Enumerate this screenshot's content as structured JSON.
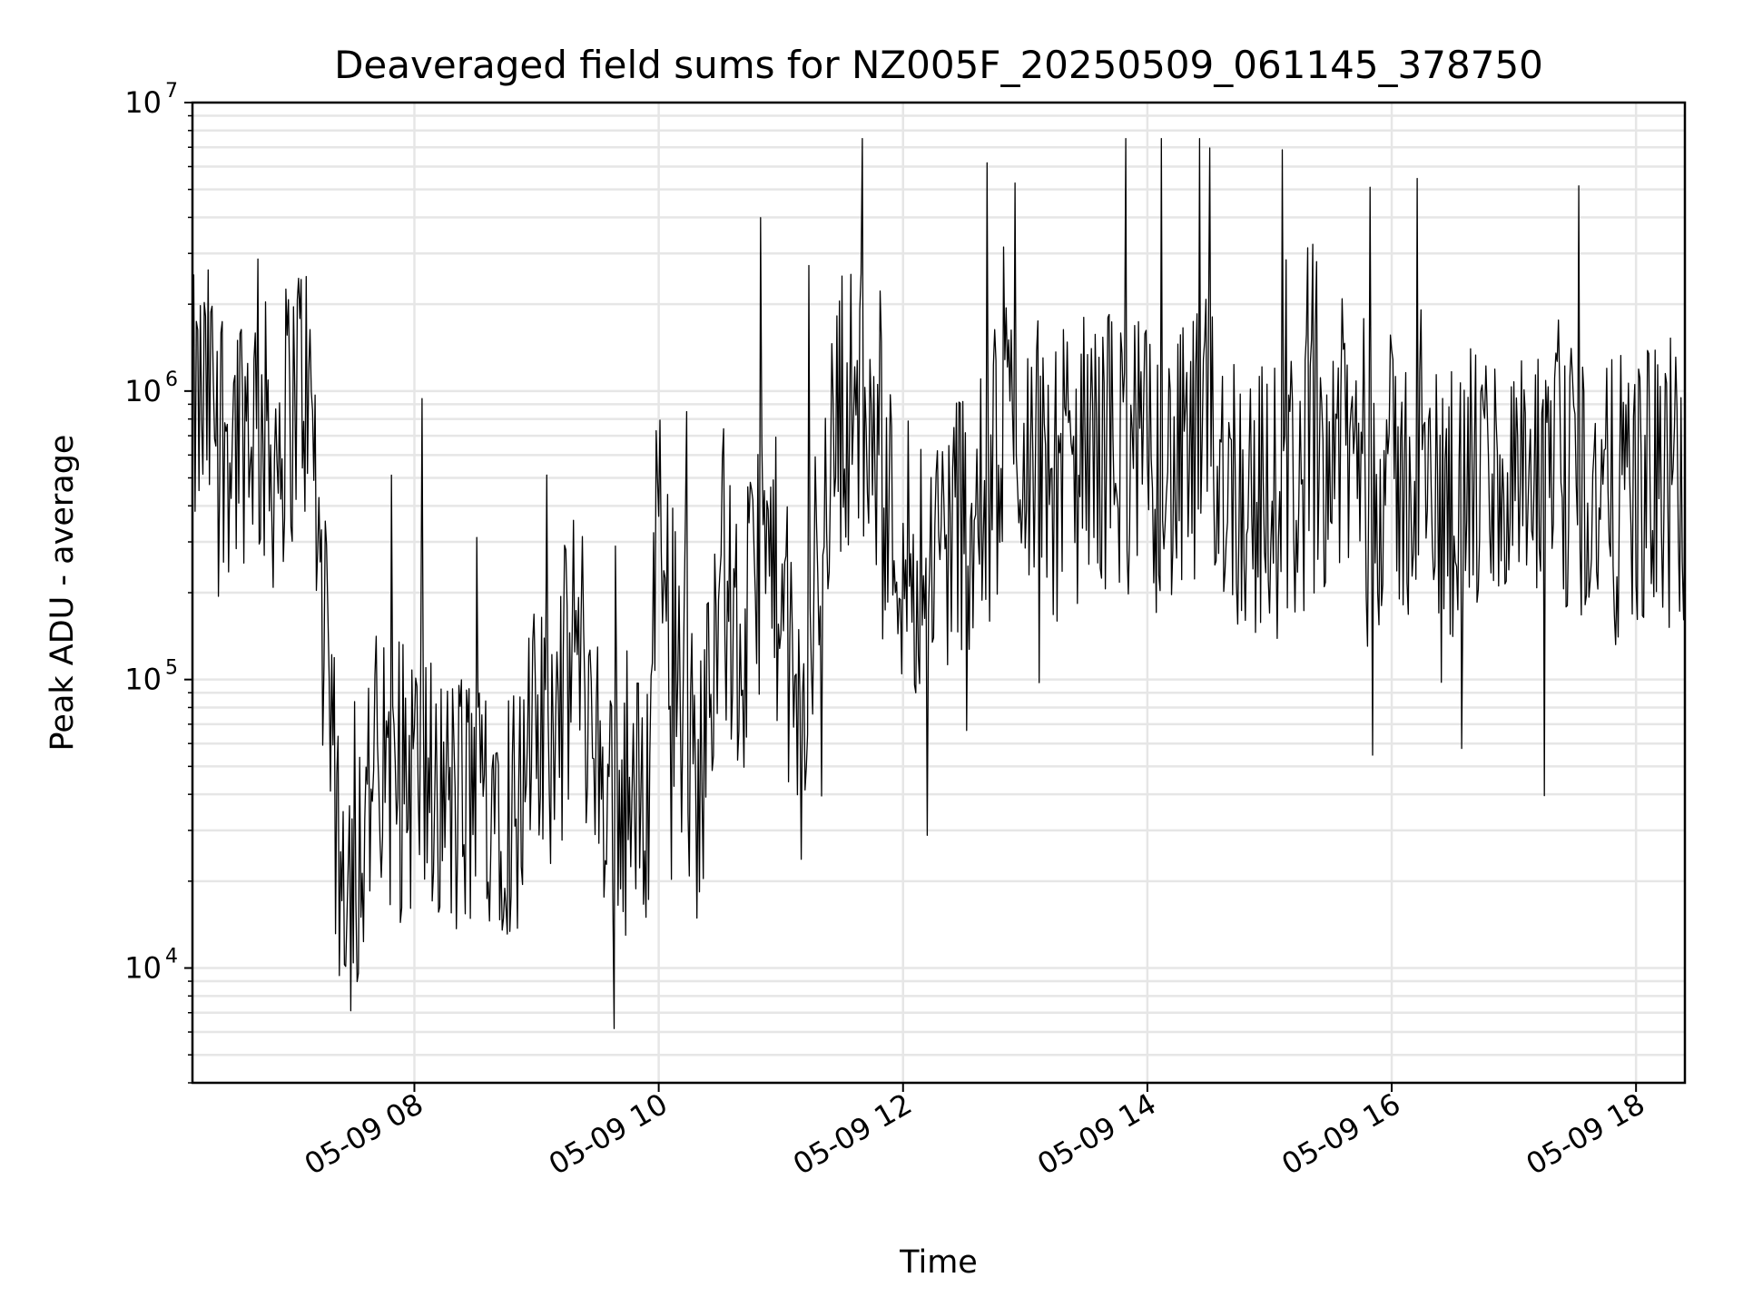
{
  "chart_data": {
    "type": "line",
    "title": "Deaveraged field sums for NZ005F_20250509_061145_378750",
    "xlabel": "Time",
    "ylabel": "Peak ADU - average",
    "yscale": "log",
    "ylim": [
      4000,
      10000000
    ],
    "xlim": [
      "2025-05-09 06:11",
      "2025-05-09 18:24"
    ],
    "grid": true,
    "line_color": "#000000",
    "grid_color": "#e6e6e6",
    "x_ticks": [
      {
        "label": "05-09 08",
        "time": "2025-05-09 08:00"
      },
      {
        "label": "05-09 10",
        "time": "2025-05-09 10:00"
      },
      {
        "label": "05-09 12",
        "time": "2025-05-09 12:00"
      },
      {
        "label": "05-09 14",
        "time": "2025-05-09 14:00"
      },
      {
        "label": "05-09 16",
        "time": "2025-05-09 16:00"
      },
      {
        "label": "05-09 18",
        "time": "2025-05-09 18:00"
      }
    ],
    "y_ticks": [
      {
        "base": "10",
        "exp": "4",
        "value": 10000
      },
      {
        "base": "10",
        "exp": "5",
        "value": 100000
      },
      {
        "base": "10",
        "exp": "6",
        "value": 1000000
      },
      {
        "base": "10",
        "exp": "7",
        "value": 10000000
      }
    ],
    "series": [
      {
        "values_note": "",
        "x": [
          "2025-05-09 06:11",
          "2025-05-09 06:20",
          "2025-05-09 06:30",
          "2025-05-09 06:40",
          "2025-05-09 06:50",
          "2025-05-09 07:00",
          "2025-05-09 07:05",
          "2025-05-09 07:10",
          "2025-05-09 07:20",
          "2025-05-09 07:30",
          "2025-05-09 07:40",
          "2025-05-09 07:50",
          "2025-05-09 08:00",
          "2025-05-09 08:10",
          "2025-05-09 08:20",
          "2025-05-09 08:30",
          "2025-05-09 08:40",
          "2025-05-09 08:50",
          "2025-05-09 09:00",
          "2025-05-09 09:10",
          "2025-05-09 09:20",
          "2025-05-09 09:30",
          "2025-05-09 09:40",
          "2025-05-09 09:50",
          "2025-05-09 09:55",
          "2025-05-09 10:00",
          "2025-05-09 10:10",
          "2025-05-09 10:20",
          "2025-05-09 10:30",
          "2025-05-09 10:40",
          "2025-05-09 10:50",
          "2025-05-09 11:00",
          "2025-05-09 11:10",
          "2025-05-09 11:20",
          "2025-05-09 11:30",
          "2025-05-09 11:40",
          "2025-05-09 11:50",
          "2025-05-09 12:00",
          "2025-05-09 12:10",
          "2025-05-09 12:20",
          "2025-05-09 12:30",
          "2025-05-09 12:40",
          "2025-05-09 12:50",
          "2025-05-09 13:00",
          "2025-05-09 13:15",
          "2025-05-09 13:30",
          "2025-05-09 13:45",
          "2025-05-09 14:00",
          "2025-05-09 14:15",
          "2025-05-09 14:30",
          "2025-05-09 14:45",
          "2025-05-09 15:00",
          "2025-05-09 15:15",
          "2025-05-09 15:30",
          "2025-05-09 15:45",
          "2025-05-09 16:00",
          "2025-05-09 16:15",
          "2025-05-09 16:30",
          "2025-05-09 16:45",
          "2025-05-09 17:00",
          "2025-05-09 17:15",
          "2025-05-09 17:30",
          "2025-05-09 17:45",
          "2025-05-09 18:00",
          "2025-05-09 18:15",
          "2025-05-09 18:24"
        ],
        "y": [
          800000,
          900000,
          700000,
          850000,
          600000,
          900000,
          1200000,
          700000,
          40000,
          20000,
          50000,
          40000,
          50000,
          40000,
          35000,
          40000,
          45000,
          35000,
          60000,
          70000,
          150000,
          50000,
          40000,
          35000,
          45000,
          600000,
          80000,
          40000,
          300000,
          100000,
          300000,
          200000,
          50000,
          400000,
          900000,
          900000,
          400000,
          300000,
          250000,
          300000,
          400000,
          350000,
          800000,
          700000,
          500000,
          600000,
          650000,
          550000,
          500000,
          700000,
          450000,
          400000,
          500000,
          700000,
          600000,
          500000,
          450000,
          400000,
          500000,
          450000,
          400000,
          500000,
          400000,
          450000,
          500000,
          450000
        ]
      }
    ]
  }
}
